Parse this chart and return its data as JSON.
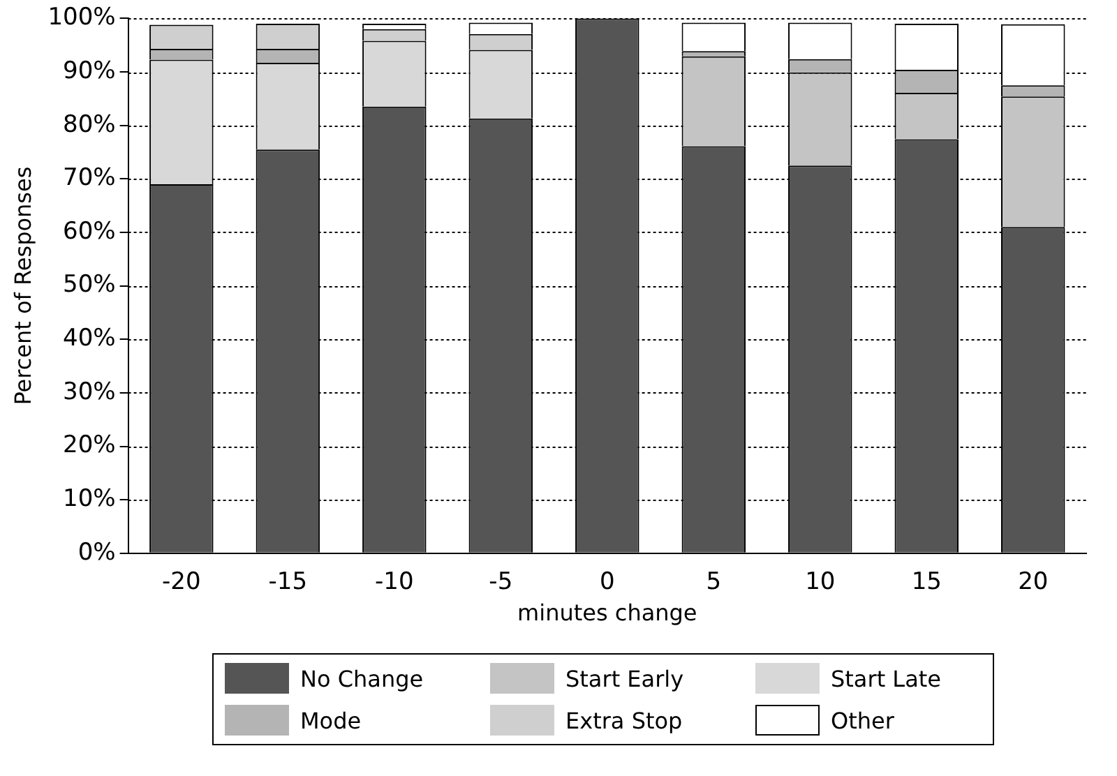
{
  "chart_data": {
    "type": "bar",
    "stacked": true,
    "xlabel": "minutes change",
    "ylabel": "Percent of Responses",
    "categories": [
      "-20",
      "-15",
      "-10",
      "-5",
      "0",
      "5",
      "10",
      "15",
      "20"
    ],
    "series": [
      {
        "name": "No Change",
        "color": "#555555",
        "values": [
          69,
          75.5,
          83.5,
          81.3,
          100,
          76.1,
          72.5,
          77.4,
          61
        ]
      },
      {
        "name": "Start Early",
        "color": "#c4c4c4",
        "values": [
          0,
          0,
          0,
          0,
          0,
          16.8,
          17.4,
          8.7,
          24.4
        ]
      },
      {
        "name": "Start Late",
        "color": "#d8d8d8",
        "values": [
          23.3,
          16.2,
          12.3,
          12.8,
          0,
          0,
          0,
          0,
          0
        ]
      },
      {
        "name": "Mode",
        "color": "#b4b4b4",
        "values": [
          2,
          2.6,
          0,
          0,
          0,
          1,
          2.5,
          4.3,
          2.1
        ]
      },
      {
        "name": "Extra Stop",
        "color": "#cfcfcf",
        "values": [
          4.5,
          4.7,
          2.2,
          3,
          0,
          0,
          0,
          0,
          0
        ]
      },
      {
        "name": "Other",
        "color": "#ffffff",
        "values": [
          0,
          0,
          1,
          2.1,
          0,
          5.3,
          6.8,
          8.6,
          11.4
        ]
      }
    ],
    "ylim": [
      0,
      100
    ],
    "yticks": [
      {
        "value": 0,
        "label": "0%"
      },
      {
        "value": 10,
        "label": "10%"
      },
      {
        "value": 20,
        "label": "20%"
      },
      {
        "value": 30,
        "label": "30%"
      },
      {
        "value": 40,
        "label": "40%"
      },
      {
        "value": 50,
        "label": "50%"
      },
      {
        "value": 60,
        "label": "60%"
      },
      {
        "value": 70,
        "label": "70%"
      },
      {
        "value": 80,
        "label": "80%"
      },
      {
        "value": 90,
        "label": "90%"
      },
      {
        "value": 100,
        "label": "100%"
      }
    ],
    "grid": "y",
    "legend": "bottom"
  }
}
